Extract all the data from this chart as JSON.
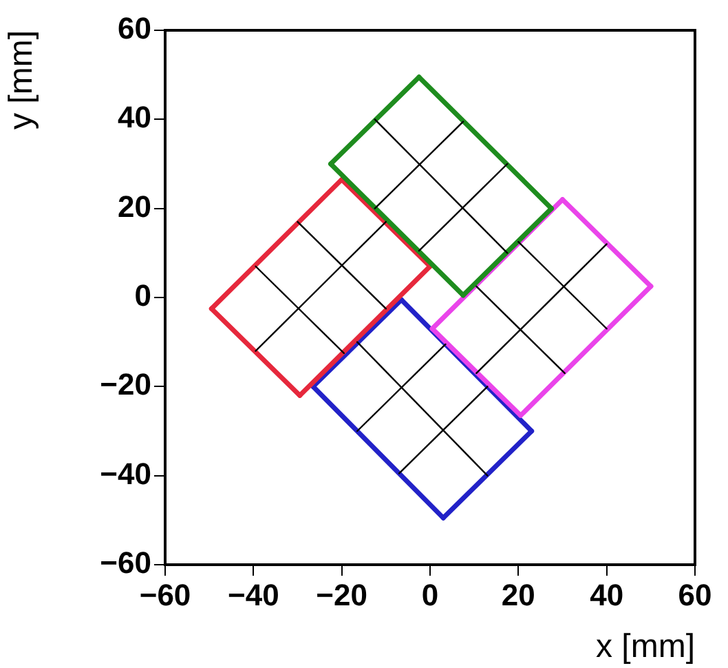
{
  "chart_data": {
    "type": "line",
    "xlabel": "x [mm]",
    "ylabel": "y [mm]",
    "xlim": [
      -60,
      60
    ],
    "xticks": [
      -60,
      -40,
      -20,
      0,
      20,
      40,
      60
    ],
    "ylim": [
      -60,
      60
    ],
    "yticks": [
      -60,
      -40,
      -20,
      0,
      20,
      40,
      60
    ],
    "grid": false,
    "legend": false,
    "marker": "none",
    "line_style": "solid",
    "series": [
      {
        "color": "#000000",
        "x": [
          -30,
          -10
        ],
        "values": [
          17,
          -2.5
        ]
      },
      {
        "color": "#000000",
        "x": [
          -39.5,
          -19.5
        ],
        "values": [
          7,
          -12.5
        ]
      },
      {
        "color": "#000000",
        "x": [
          -10,
          -39.5
        ],
        "values": [
          17,
          -12
        ]
      },
      {
        "color": "#000000",
        "x": [
          -12.5,
          17.5
        ],
        "values": [
          40,
          10
        ]
      },
      {
        "color": "#000000",
        "x": [
          7.5,
          -12.5
        ],
        "values": [
          39.5,
          20
        ]
      },
      {
        "color": "#000000",
        "x": [
          17.5,
          -2.5
        ],
        "values": [
          30,
          10.5
        ]
      },
      {
        "color": "#000000",
        "x": [
          20,
          40
        ],
        "values": [
          12.5,
          -7
        ]
      },
      {
        "color": "#000000",
        "x": [
          10.5,
          30.5
        ],
        "values": [
          2.5,
          -17
        ]
      },
      {
        "color": "#000000",
        "x": [
          40,
          10.5
        ],
        "values": [
          12,
          -17
        ]
      },
      {
        "color": "#000000",
        "x": [
          -16.5,
          13
        ],
        "values": [
          -10,
          -40
        ]
      },
      {
        "color": "#000000",
        "x": [
          3.5,
          -16.5
        ],
        "values": [
          -10.5,
          -30
        ]
      },
      {
        "color": "#000000",
        "x": [
          13,
          -7
        ],
        "values": [
          -20,
          -39.5
        ]
      },
      {
        "color": "#1e8c1e",
        "x": [
          -2.5,
          -22.5
        ],
        "values": [
          49.5,
          30
        ]
      },
      {
        "color": "#1e8c1e",
        "x": [
          -22.5,
          7.5
        ],
        "values": [
          30,
          0.5
        ]
      },
      {
        "color": "#1e8c1e",
        "x": [
          7.5,
          27.5
        ],
        "values": [
          0.5,
          20
        ]
      },
      {
        "color": "#1e8c1e",
        "x": [
          27.5,
          -2.5
        ],
        "values": [
          20,
          49.5
        ]
      },
      {
        "color": "#e6283c",
        "x": [
          -20,
          -49.5
        ],
        "values": [
          26.5,
          -2.5
        ]
      },
      {
        "color": "#e6283c",
        "x": [
          -49.5,
          -29.5
        ],
        "values": [
          -2.5,
          -22
        ]
      },
      {
        "color": "#e6283c",
        "x": [
          -29.5,
          0
        ],
        "values": [
          -22,
          7
        ]
      },
      {
        "color": "#e6283c",
        "x": [
          0,
          -20
        ],
        "values": [
          7,
          26.5
        ]
      },
      {
        "color": "#ea44ea",
        "x": [
          30,
          0.5
        ],
        "values": [
          22,
          -7
        ]
      },
      {
        "color": "#ea44ea",
        "x": [
          0.5,
          20.5
        ],
        "values": [
          -7,
          -26.5
        ]
      },
      {
        "color": "#ea44ea",
        "x": [
          20.5,
          50
        ],
        "values": [
          -26.5,
          2.5
        ]
      },
      {
        "color": "#ea44ea",
        "x": [
          50,
          30
        ],
        "values": [
          2.5,
          22
        ]
      },
      {
        "color": "#2222c8",
        "x": [
          -6.5,
          -26.5
        ],
        "values": [
          -0.5,
          -20
        ]
      },
      {
        "color": "#2222c8",
        "x": [
          -26.5,
          3
        ],
        "values": [
          -20,
          -49.5
        ]
      },
      {
        "color": "#2222c8",
        "x": [
          3,
          23
        ],
        "values": [
          -49.5,
          -30
        ]
      },
      {
        "color": "#2222c8",
        "x": [
          23,
          -6.5
        ],
        "values": [
          -30,
          -0.5
        ]
      }
    ]
  }
}
